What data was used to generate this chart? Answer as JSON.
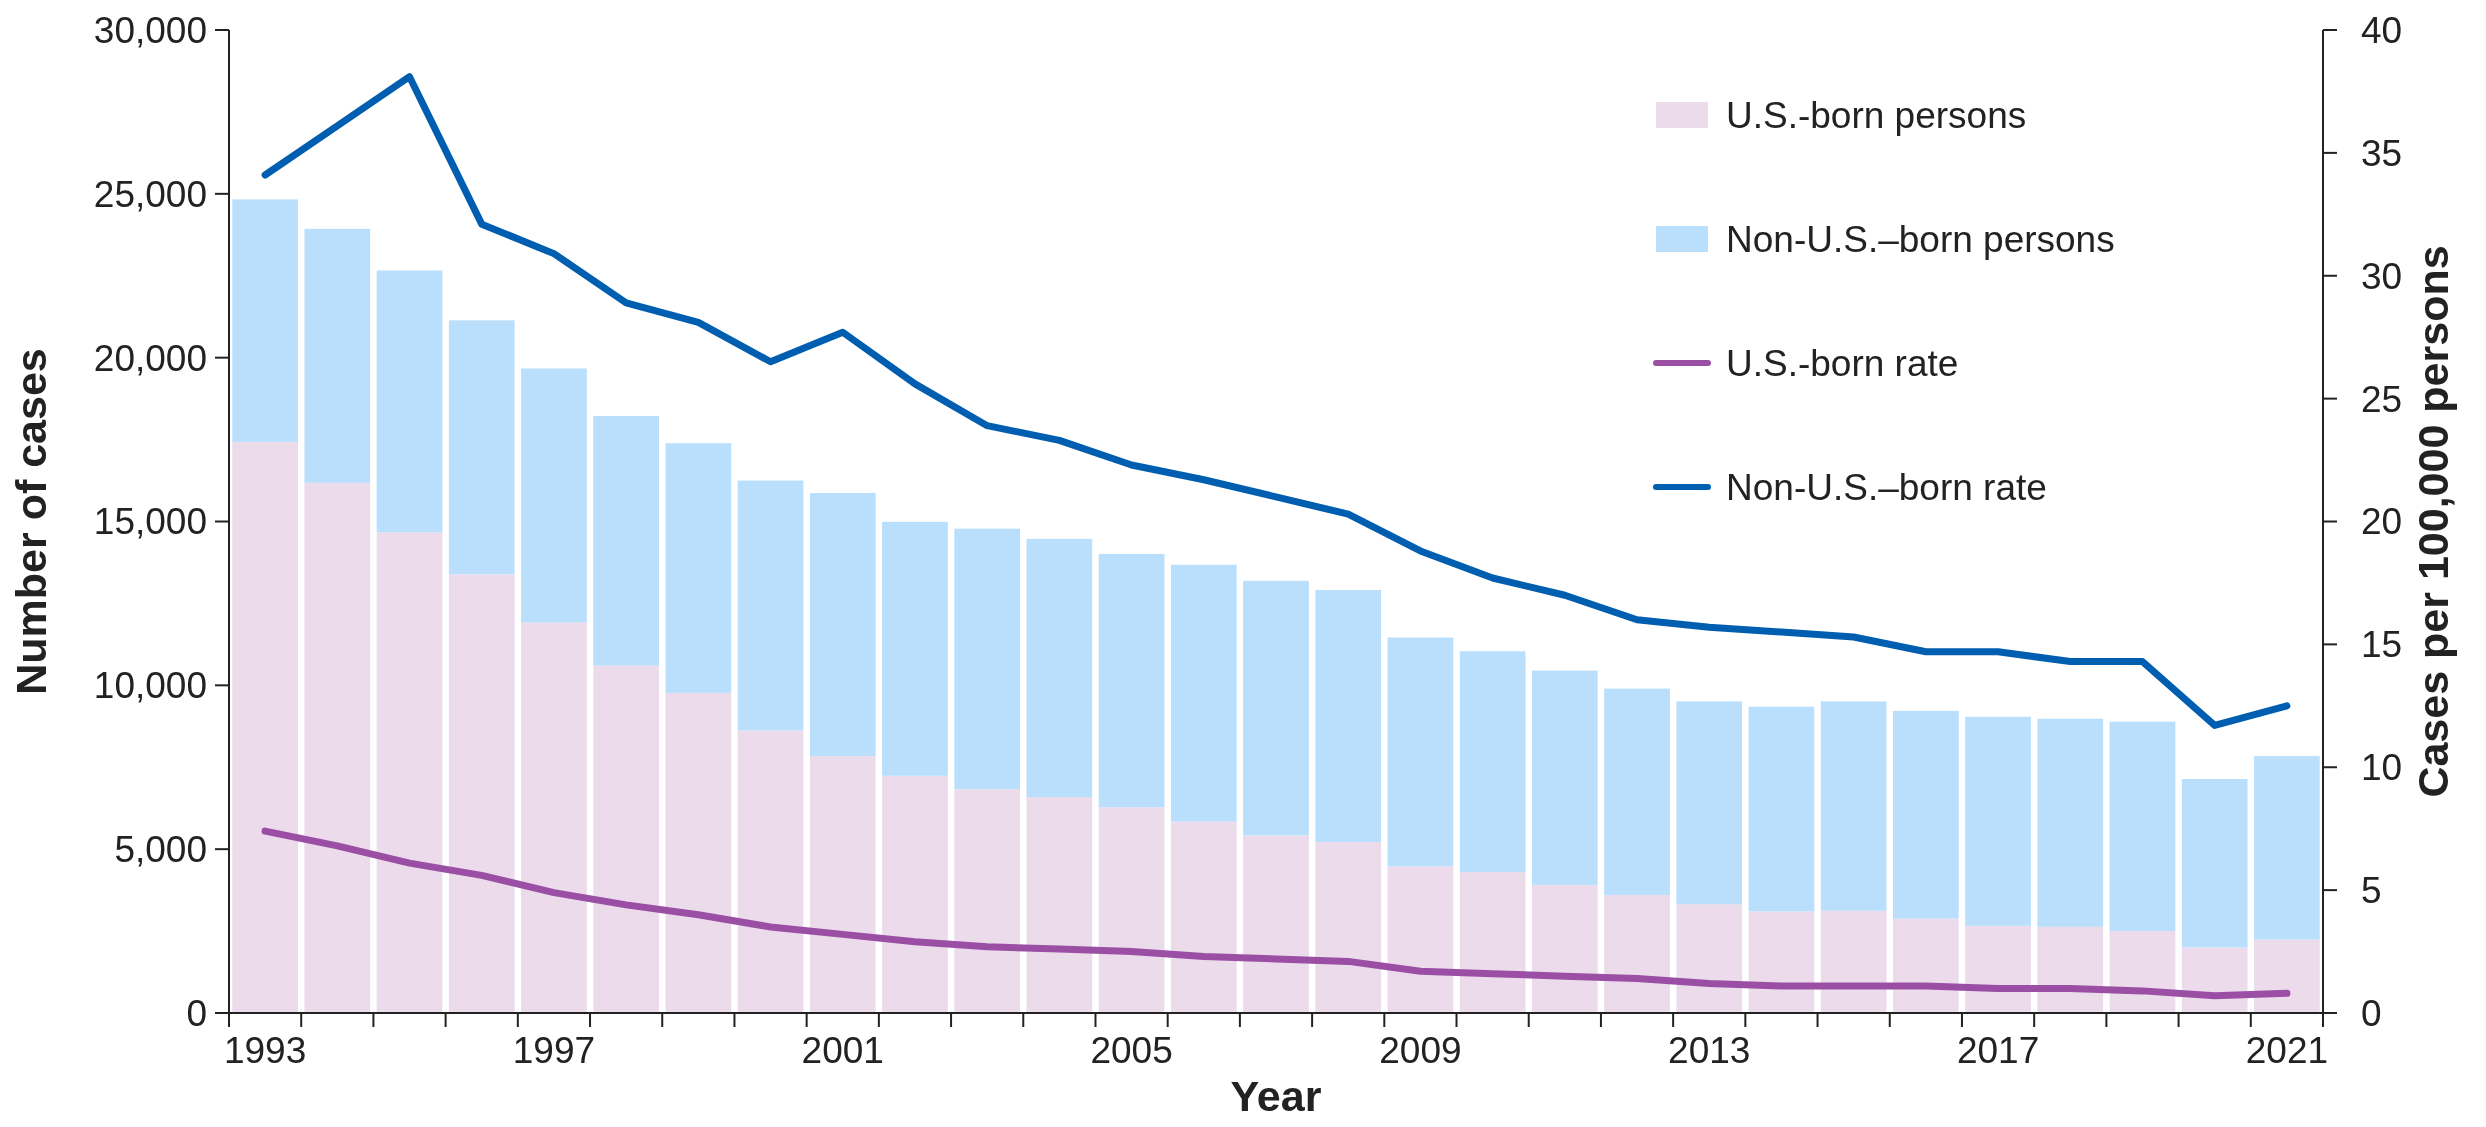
{
  "chart_data": {
    "type": "bar",
    "stacked": true,
    "xlabel": "Year",
    "ylabel": "Number of cases",
    "y2label": "Cases per 100,000 persons",
    "categories": [
      "1993",
      null,
      null,
      null,
      "1997",
      null,
      null,
      null,
      "2001",
      null,
      null,
      null,
      "2005",
      null,
      null,
      null,
      "2009",
      null,
      null,
      null,
      "2013",
      null,
      null,
      null,
      "2017",
      null,
      null,
      null,
      "2021"
    ],
    "series": [
      {
        "name": "U.S.-born persons",
        "color": "#ebdbeb",
        "values": [
          17430,
          16180,
          14670,
          13390,
          11920,
          10600,
          9770,
          8630,
          7840,
          7240,
          6830,
          6590,
          6280,
          5840,
          5420,
          5220,
          4480,
          4300,
          3910,
          3600,
          3320,
          3100,
          3120,
          2880,
          2660,
          2630,
          2500,
          2000,
          2240
        ]
      },
      {
        "name": "Non-U.S.–born persons",
        "color": "#badffd",
        "values": [
          7400,
          7750,
          7990,
          7750,
          7750,
          7620,
          7620,
          7620,
          8030,
          7750,
          7950,
          7880,
          7730,
          7840,
          7770,
          7690,
          6980,
          6740,
          6540,
          6300,
          6190,
          6250,
          6390,
          6340,
          6380,
          6350,
          6390,
          5140,
          5600
        ]
      },
      {
        "name": "U.S.-born rate",
        "type": "line",
        "axis": "y2",
        "color": "#9a4fa5",
        "values": [
          7.4,
          6.8,
          6.1,
          5.6,
          4.9,
          4.4,
          4.0,
          3.5,
          3.2,
          2.9,
          2.7,
          2.6,
          2.5,
          2.3,
          2.2,
          2.1,
          1.7,
          1.6,
          1.5,
          1.4,
          1.2,
          1.1,
          1.1,
          1.1,
          1.0,
          1.0,
          0.9,
          0.7,
          0.8
        ]
      },
      {
        "name": "Non-U.S.–born rate",
        "type": "line",
        "axis": "y2",
        "color": "#005eb0",
        "values": [
          34.1,
          36.1,
          38.1,
          32.1,
          30.9,
          28.9,
          28.1,
          26.5,
          27.7,
          25.6,
          23.9,
          23.3,
          22.3,
          21.7,
          21.0,
          20.3,
          18.8,
          17.7,
          17.0,
          16.0,
          15.7,
          15.5,
          15.3,
          14.7,
          14.7,
          14.3,
          14.3,
          11.7,
          12.5
        ]
      }
    ],
    "ylim": [
      0,
      30000
    ],
    "yticks": [
      {
        "value": 0,
        "label": "0"
      },
      {
        "value": 5000,
        "label": "5,000"
      },
      {
        "value": 10000,
        "label": "10,000"
      },
      {
        "value": 15000,
        "label": "15,000"
      },
      {
        "value": 20000,
        "label": "20,000"
      },
      {
        "value": 25000,
        "label": "25,000"
      },
      {
        "value": 30000,
        "label": "30,000"
      }
    ],
    "y2lim": [
      0,
      40
    ],
    "y2ticks": [
      0,
      5,
      10,
      15,
      20,
      25,
      30,
      35,
      40
    ],
    "grid": false,
    "legend": "top right",
    "marker": "none",
    "line_style": "solid"
  }
}
